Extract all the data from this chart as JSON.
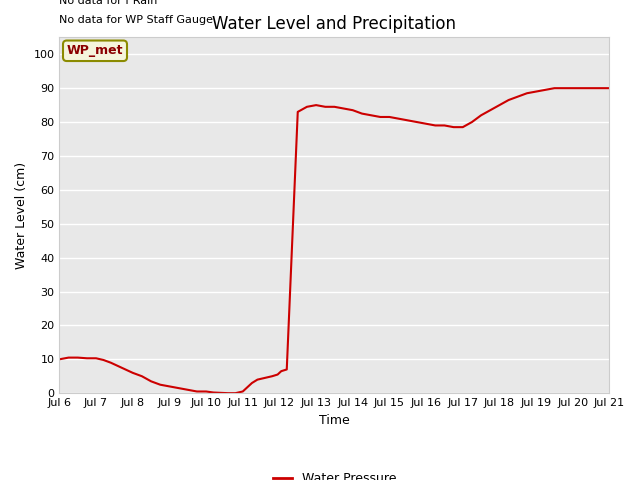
{
  "title": "Water Level and Precipitation",
  "xlabel": "Time",
  "ylabel": "Water Level (cm)",
  "ylim": [
    0,
    105
  ],
  "yticks": [
    0,
    10,
    20,
    30,
    40,
    50,
    60,
    70,
    80,
    90,
    100
  ],
  "xlim": [
    6,
    21
  ],
  "background_color": "#e8e8e8",
  "line_color": "#cc0000",
  "line_width": 1.5,
  "legend_label": "Water Pressure",
  "legend_line_color": "#cc0000",
  "annotation_text1": "No data for f Rain",
  "annotation_text2": "No data for WP Staff Gauge",
  "inset_label": "WP_met",
  "inset_bg": "#f5f5dc",
  "inset_border": "#8b0000",
  "x_data_days": [
    6.0,
    6.25,
    6.5,
    6.75,
    7.0,
    7.2,
    7.4,
    7.6,
    7.8,
    8.0,
    8.25,
    8.5,
    8.75,
    9.0,
    9.25,
    9.5,
    9.75,
    10.0,
    10.2,
    10.4,
    10.6,
    10.8,
    11.0,
    11.1,
    11.25,
    11.4,
    11.6,
    11.8,
    11.95,
    12.05,
    12.2,
    12.5,
    12.75,
    13.0,
    13.25,
    13.5,
    13.75,
    14.0,
    14.25,
    14.5,
    14.75,
    15.0,
    15.25,
    15.5,
    15.75,
    16.0,
    16.25,
    16.5,
    16.75,
    17.0,
    17.25,
    17.5,
    17.75,
    18.0,
    18.25,
    18.5,
    18.75,
    19.0,
    19.25,
    19.5,
    19.75,
    20.0,
    20.25,
    20.5,
    20.75,
    21.0
  ],
  "y_data": [
    10.0,
    10.5,
    10.5,
    10.3,
    10.3,
    9.8,
    9.0,
    8.0,
    7.0,
    6.0,
    5.0,
    3.5,
    2.5,
    2.0,
    1.5,
    1.0,
    0.5,
    0.5,
    0.2,
    0.1,
    0.0,
    0.0,
    0.5,
    1.5,
    3.0,
    4.0,
    4.5,
    5.0,
    5.5,
    6.5,
    7.0,
    83.0,
    84.5,
    85.0,
    84.5,
    84.5,
    84.0,
    83.5,
    82.5,
    82.0,
    81.5,
    81.5,
    81.0,
    80.5,
    80.0,
    79.5,
    79.0,
    79.0,
    78.5,
    78.5,
    80.0,
    82.0,
    83.5,
    85.0,
    86.5,
    87.5,
    88.5,
    89.0,
    89.5,
    90.0,
    90.0,
    90.0,
    90.0,
    90.0,
    90.0,
    90.0
  ]
}
